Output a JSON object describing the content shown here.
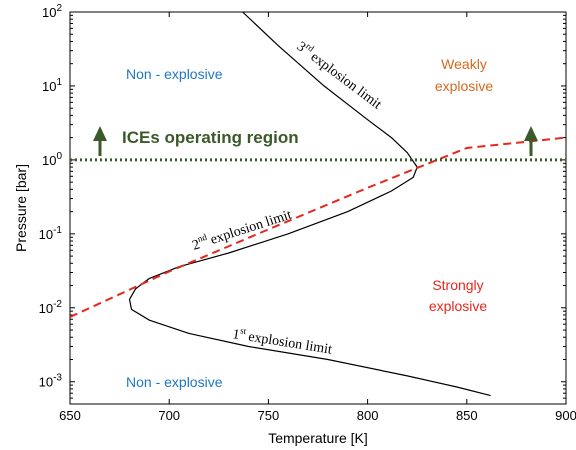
{
  "chart_data": {
    "type": "line",
    "title": "",
    "xlabel": "Temperature [K]",
    "ylabel": "Pressure [bar]",
    "xlim": [
      650,
      900
    ],
    "ylim": [
      0.0005,
      100
    ],
    "y_scale": "log",
    "grid": false,
    "x_ticks": [
      "650",
      "700",
      "750",
      "800",
      "850",
      "900"
    ],
    "x_tick_values": [
      650,
      700,
      750,
      800,
      850,
      900
    ],
    "y_tick_values": [
      0.001,
      0.01,
      0.1,
      1,
      10,
      100
    ],
    "y_tick_labels": [
      {
        "base": "10",
        "exp": "-3"
      },
      {
        "base": "10",
        "exp": "-2"
      },
      {
        "base": "10",
        "exp": "-1"
      },
      {
        "base": "10",
        "exp": "0"
      },
      {
        "base": "10",
        "exp": "1"
      },
      {
        "base": "10",
        "exp": "2"
      }
    ],
    "series": [
      {
        "color": "#000000",
        "style": "solid",
        "points": [
          [
            737,
            100
          ],
          [
            755,
            35
          ],
          [
            778,
            10
          ],
          [
            800,
            3.5
          ],
          [
            812,
            2
          ],
          [
            820,
            1.25
          ],
          [
            825,
            0.8
          ],
          [
            823,
            0.58
          ],
          [
            812,
            0.38
          ],
          [
            790,
            0.2
          ],
          [
            760,
            0.1
          ],
          [
            730,
            0.055
          ],
          [
            705,
            0.036
          ],
          [
            690,
            0.025
          ],
          [
            683,
            0.018
          ],
          [
            680,
            0.013
          ],
          [
            681,
            0.0095
          ],
          [
            690,
            0.0068
          ],
          [
            710,
            0.0045
          ],
          [
            740,
            0.003
          ],
          [
            780,
            0.002
          ],
          [
            820,
            0.0012
          ],
          [
            845,
            0.00085
          ],
          [
            862,
            0.00065
          ]
        ]
      },
      {
        "color": "#e8261d",
        "style": "dashed",
        "points": [
          [
            650,
            0.0075
          ],
          [
            700,
            0.031
          ],
          [
            750,
            0.115
          ],
          [
            800,
            0.42
          ],
          [
            850,
            1.45
          ],
          [
            900,
            2.0
          ]
        ]
      },
      {
        "color": "#3b5a2a",
        "style": "dotted",
        "points": [
          [
            650,
            1
          ],
          [
            900,
            1
          ]
        ]
      }
    ],
    "annotations": {
      "ices_label": "ICEs operating region",
      "non_explosive_top": "Non - explosive",
      "non_explosive_bottom": "Non - explosive",
      "weakly_line1": "Weakly",
      "weakly_line2": "explosive",
      "strongly_line1": "Strongly",
      "strongly_line2": "explosive",
      "first_limit": {
        "num": "1",
        "sup": "st",
        "text": "explosion limit"
      },
      "second_limit": {
        "num": "2",
        "sup": "nd",
        "text": "explosion limit"
      },
      "third_limit": {
        "num": "3",
        "sup": "rd",
        "text": "explosion limit"
      }
    },
    "colors": {
      "non_explosive": "#1f77c4",
      "weakly_explosive": "#d2691e",
      "strongly_explosive": "#e8261d",
      "ices": "#3b5a2a"
    }
  }
}
